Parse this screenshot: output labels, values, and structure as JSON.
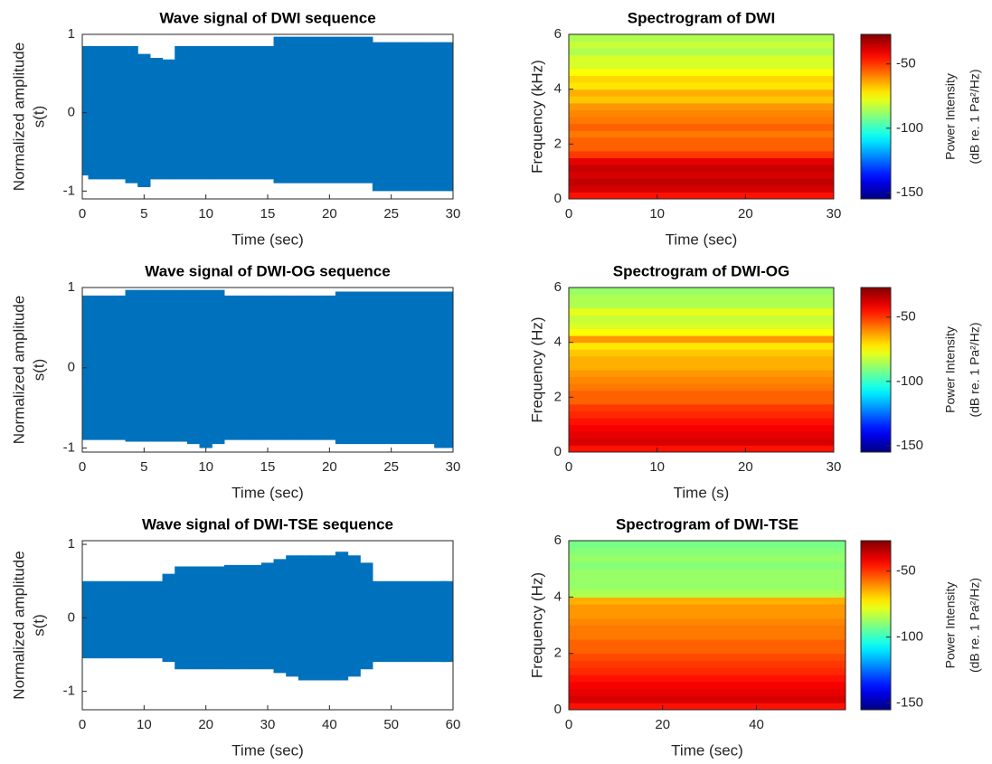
{
  "chart_data": [
    {
      "type": "wave",
      "title": "Wave signal of DWI sequence",
      "xlabel": "Time (sec)",
      "ylabel": [
        "Normalized amplitude",
        "s(t)"
      ],
      "color": "#0072bd",
      "x": [
        0,
        1,
        2,
        3,
        4,
        5,
        6,
        7,
        8,
        9,
        10,
        11,
        12,
        13,
        14,
        15,
        16,
        17,
        18,
        19,
        20,
        21,
        22,
        23,
        24,
        25,
        26,
        27,
        28,
        29,
        30
      ],
      "upper": [
        0.85,
        0.85,
        0.85,
        0.85,
        0.85,
        0.75,
        0.7,
        0.68,
        0.85,
        0.85,
        0.85,
        0.85,
        0.85,
        0.85,
        0.85,
        0.85,
        0.97,
        0.97,
        0.97,
        0.97,
        0.97,
        0.97,
        0.97,
        0.97,
        0.9,
        0.9,
        0.9,
        0.9,
        0.9,
        0.9,
        0.9
      ],
      "lower": [
        -0.8,
        -0.85,
        -0.85,
        -0.85,
        -0.9,
        -0.95,
        -0.85,
        -0.85,
        -0.85,
        -0.85,
        -0.85,
        -0.85,
        -0.85,
        -0.85,
        -0.85,
        -0.85,
        -0.9,
        -0.9,
        -0.9,
        -0.9,
        -0.9,
        -0.9,
        -0.9,
        -0.9,
        -1.0,
        -1.0,
        -1.0,
        -1.0,
        -1.0,
        -1.0,
        -1.0
      ],
      "xlim": [
        0,
        30
      ],
      "ylim": [
        -1.1,
        1
      ],
      "xticks": [
        0,
        5,
        10,
        15,
        20,
        25,
        30
      ],
      "yticks": [
        -1,
        0,
        1
      ]
    },
    {
      "type": "spectrogram",
      "title": "Spectrogram of DWI",
      "xlabel": "Time (sec)",
      "ylabel": "Frequency (kHz)",
      "freq_bins": [
        0,
        0.25,
        0.5,
        0.75,
        1,
        1.25,
        1.5,
        1.75,
        2,
        2.25,
        2.5,
        2.75,
        3,
        3.25,
        3.5,
        3.75,
        4,
        4.25,
        4.5,
        4.75,
        5,
        5.25,
        5.5,
        5.75,
        6
      ],
      "power": [
        -45,
        -38,
        -35,
        -38,
        -36,
        -40,
        -50,
        -55,
        -55,
        -58,
        -55,
        -58,
        -60,
        -62,
        -68,
        -65,
        -72,
        -70,
        -75,
        -80,
        -80,
        -85,
        -82,
        -85
      ],
      "xlim": [
        0,
        30
      ],
      "ylim": [
        0,
        6
      ],
      "xticks": [
        0,
        10,
        20,
        30
      ],
      "yticks": [
        0,
        2,
        4,
        6
      ],
      "colorbar": {
        "label": [
          "Power Intensity",
          "(dB re. 1 Pa²/Hz)"
        ],
        "clim": [
          -155,
          -27
        ],
        "ticks": [
          -150,
          -100,
          -50
        ]
      }
    },
    {
      "type": "wave",
      "title": "Wave signal of DWI-OG sequence",
      "xlabel": "Time (sec)",
      "ylabel": [
        "Normalized amplitude",
        "s(t)"
      ],
      "color": "#0072bd",
      "x": [
        0,
        1,
        2,
        3,
        4,
        5,
        6,
        7,
        8,
        9,
        10,
        11,
        12,
        13,
        14,
        15,
        16,
        17,
        18,
        19,
        20,
        21,
        22,
        23,
        24,
        25,
        26,
        27,
        28,
        29,
        30
      ],
      "upper": [
        0.9,
        0.9,
        0.9,
        0.9,
        0.97,
        0.97,
        0.97,
        0.97,
        0.97,
        0.97,
        0.97,
        0.97,
        0.9,
        0.9,
        0.9,
        0.9,
        0.9,
        0.9,
        0.9,
        0.9,
        0.9,
        0.95,
        0.95,
        0.95,
        0.95,
        0.95,
        0.95,
        0.95,
        0.95,
        0.95,
        0.95
      ],
      "lower": [
        -0.9,
        -0.9,
        -0.9,
        -0.9,
        -0.92,
        -0.92,
        -0.92,
        -0.92,
        -0.92,
        -0.95,
        -1.0,
        -0.95,
        -0.9,
        -0.9,
        -0.9,
        -0.9,
        -0.9,
        -0.9,
        -0.9,
        -0.9,
        -0.9,
        -0.95,
        -0.95,
        -0.95,
        -0.95,
        -0.95,
        -0.95,
        -0.95,
        -0.95,
        -1.0,
        -1.0
      ],
      "xlim": [
        0,
        30
      ],
      "ylim": [
        -1.05,
        1
      ],
      "xticks": [
        0,
        5,
        10,
        15,
        20,
        25,
        30
      ],
      "yticks": [
        -1,
        0,
        1
      ]
    },
    {
      "type": "spectrogram",
      "title": "Spectrogram of DWI-OG",
      "xlabel": "Time (s)",
      "ylabel": "Frequency (Hz)",
      "freq_bins": [
        0,
        0.25,
        0.5,
        0.75,
        1,
        1.25,
        1.5,
        1.75,
        2,
        2.25,
        2.5,
        2.75,
        3,
        3.25,
        3.5,
        3.75,
        4,
        4.25,
        4.5,
        4.75,
        5,
        5.25,
        5.5,
        5.75,
        6
      ],
      "power": [
        -45,
        -38,
        -40,
        -42,
        -45,
        -48,
        -50,
        -55,
        -55,
        -58,
        -60,
        -62,
        -65,
        -65,
        -68,
        -72,
        -62,
        -75,
        -80,
        -82,
        -78,
        -85,
        -85,
        -88
      ],
      "xlim": [
        0,
        30
      ],
      "ylim": [
        0,
        6
      ],
      "xticks": [
        0,
        10,
        20,
        30
      ],
      "yticks": [
        0,
        2,
        4,
        6
      ],
      "colorbar": {
        "label": [
          "Power Intensity",
          "(dB re. 1 Pa²/Hz)"
        ],
        "clim": [
          -155,
          -27
        ],
        "ticks": [
          -150,
          -100,
          -50
        ]
      }
    },
    {
      "type": "wave",
      "title": "Wave signal of DWI-TSE sequence",
      "xlabel": "Time (sec)",
      "ylabel": [
        "Normalized amplitude",
        "s(t)"
      ],
      "color": "#0072bd",
      "x": [
        0,
        2,
        4,
        6,
        8,
        10,
        12,
        14,
        16,
        18,
        20,
        22,
        24,
        26,
        28,
        30,
        32,
        34,
        36,
        38,
        40,
        42,
        44,
        46,
        48,
        50,
        52,
        54,
        56,
        58,
        59
      ],
      "upper": [
        0.5,
        0.5,
        0.5,
        0.5,
        0.5,
        0.5,
        0.5,
        0.6,
        0.7,
        0.7,
        0.7,
        0.7,
        0.72,
        0.72,
        0.72,
        0.75,
        0.8,
        0.85,
        0.85,
        0.85,
        0.85,
        0.9,
        0.85,
        0.75,
        0.5,
        0.5,
        0.5,
        0.5,
        0.5,
        0.5,
        0.5
      ],
      "lower": [
        -0.55,
        -0.55,
        -0.55,
        -0.55,
        -0.55,
        -0.55,
        -0.55,
        -0.6,
        -0.7,
        -0.7,
        -0.7,
        -0.7,
        -0.7,
        -0.7,
        -0.7,
        -0.7,
        -0.75,
        -0.8,
        -0.85,
        -0.85,
        -0.85,
        -0.85,
        -0.8,
        -0.7,
        -0.6,
        -0.6,
        -0.6,
        -0.6,
        -0.6,
        -0.6,
        -0.6
      ],
      "xlim": [
        0,
        60
      ],
      "ylim": [
        -1.25,
        1.05
      ],
      "xticks": [
        0,
        10,
        20,
        30,
        40,
        50,
        60
      ],
      "yticks": [
        -1,
        0,
        1
      ]
    },
    {
      "type": "spectrogram",
      "title": "Spectrogram of DWI-TSE",
      "xlabel": "Time (sec)",
      "ylabel": "Frequency (Hz)",
      "freq_bins": [
        0,
        0.25,
        0.5,
        0.75,
        1,
        1.25,
        1.5,
        1.75,
        2,
        2.25,
        2.5,
        2.75,
        3,
        3.25,
        3.5,
        3.75,
        4,
        4.25,
        4.5,
        4.75,
        5,
        5.25,
        5.5,
        5.75,
        6
      ],
      "power": [
        -45,
        -38,
        -40,
        -42,
        -45,
        -48,
        -50,
        -52,
        -55,
        -55,
        -58,
        -58,
        -60,
        -62,
        -62,
        -65,
        -85,
        -88,
        -88,
        -88,
        -90,
        -88,
        -90,
        -92
      ],
      "xlim": [
        0,
        59
      ],
      "ylim": [
        0,
        6
      ],
      "xticks": [
        0,
        20,
        40
      ],
      "yticks": [
        0,
        2,
        4,
        6
      ],
      "colorbar": {
        "label": [
          "Power Intensity",
          "(dB re. 1 Pa²/Hz)"
        ],
        "clim": [
          -155,
          -27
        ],
        "ticks": [
          -150,
          -100,
          -50
        ]
      }
    }
  ]
}
